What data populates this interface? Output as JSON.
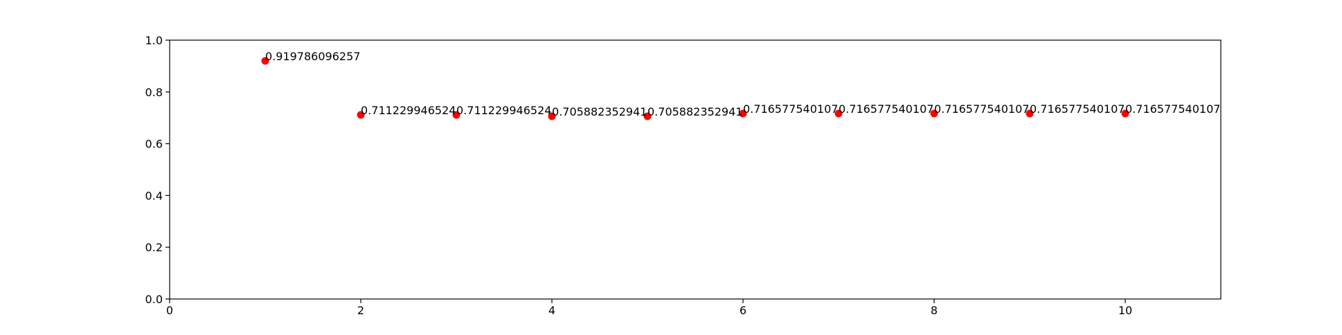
{
  "chart_data": {
    "type": "scatter",
    "title": "",
    "xlabel": "",
    "ylabel": "",
    "xlim": [
      0,
      11
    ],
    "ylim": [
      0,
      1.0
    ],
    "x_ticks": [
      0,
      2,
      4,
      6,
      8,
      10
    ],
    "x_tick_labels": [
      "0",
      "2",
      "4",
      "6",
      "8",
      "10"
    ],
    "y_ticks": [
      0,
      0.2,
      0.4,
      0.6,
      0.8,
      1.0
    ],
    "y_tick_labels": [
      "0.0",
      "0.2",
      "0.4",
      "0.6",
      "0.8",
      "1.0"
    ],
    "grid": false,
    "marker_color": "#ff0000",
    "points": [
      {
        "x": 1,
        "y": 0.919786096257,
        "label": "0.919786096257"
      },
      {
        "x": 2,
        "y": 0.711229946524,
        "label": "0.711229946524"
      },
      {
        "x": 3,
        "y": 0.711229946524,
        "label": "0.711229946524"
      },
      {
        "x": 4,
        "y": 0.705882352941,
        "label": "0.705882352941"
      },
      {
        "x": 5,
        "y": 0.705882352941,
        "label": "0.705882352941"
      },
      {
        "x": 6,
        "y": 0.716577540107,
        "label": "0.716577540107"
      },
      {
        "x": 7,
        "y": 0.716577540107,
        "label": "0.716577540107"
      },
      {
        "x": 8,
        "y": 0.716577540107,
        "label": "0.716577540107"
      },
      {
        "x": 9,
        "y": 0.716577540107,
        "label": "0.716577540107"
      },
      {
        "x": 10,
        "y": 0.716577540107,
        "label": "0.716577540107"
      }
    ]
  }
}
